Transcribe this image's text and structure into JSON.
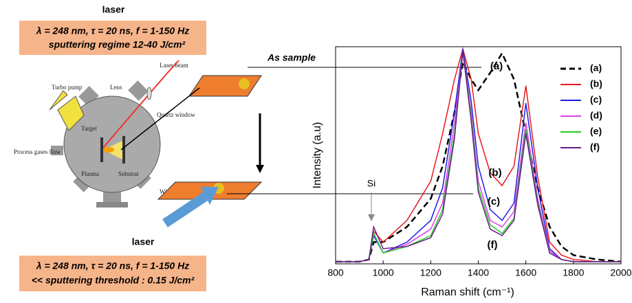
{
  "setup": {
    "laser_top": "laser",
    "box_top": [
      "λ = 248 nm, τ = 20 ns, f = 1-150 Hz",
      "sputtering regime 12-40 J/cm²"
    ],
    "chamber_labels": {
      "turbo_pump": "Turbo pump",
      "lens": "Lens",
      "laser_beam": "Laser beam",
      "quartz_window": "Quartz window",
      "target": "Target",
      "process_gases": "Process gases flow",
      "plasma": "Plasma",
      "substrat": "Substrat",
      "window": "Window"
    },
    "laser_bottom": "laser",
    "box_bottom": [
      "λ = 248 nm, τ = 20 ns, f = 1-150 Hz",
      "<< sputtering threshold : 0.15 J/cm²"
    ],
    "as_sample": "As sample"
  },
  "chart_data": {
    "type": "line",
    "xlabel": "Raman shift (cm⁻¹)",
    "ylabel": "Intensity (a.u)",
    "x": [
      800,
      900,
      940,
      960,
      1000,
      1100,
      1200,
      1250,
      1300,
      1335,
      1370,
      1400,
      1450,
      1500,
      1550,
      1600,
      1650,
      1700,
      1750,
      1800,
      1900,
      2000
    ],
    "xlim": [
      800,
      2000
    ],
    "xticks": [
      800,
      1000,
      1200,
      1400,
      1600,
      1800,
      2000
    ],
    "ylim": [
      0,
      1
    ],
    "legend": "upper right",
    "series": [
      {
        "name": "(a)",
        "color": "#000000",
        "dash": true,
        "values": [
          0.01,
          0.01,
          0.02,
          0.1,
          0.1,
          0.17,
          0.3,
          0.45,
          0.7,
          0.93,
          0.85,
          0.8,
          0.88,
          0.97,
          0.85,
          0.6,
          0.35,
          0.17,
          0.08,
          0.04,
          0.02,
          0.01
        ]
      },
      {
        "name": "(b)",
        "color": "#e8191c",
        "values": [
          0.01,
          0.01,
          0.02,
          0.15,
          0.1,
          0.2,
          0.38,
          0.6,
          0.85,
          0.99,
          0.85,
          0.6,
          0.42,
          0.36,
          0.45,
          0.82,
          0.4,
          0.1,
          0.04,
          0.02,
          0.01,
          0.01
        ]
      },
      {
        "name": "(c)",
        "color": "#1c1ce8",
        "values": [
          0.01,
          0.01,
          0.02,
          0.13,
          0.05,
          0.1,
          0.2,
          0.35,
          0.7,
          0.99,
          0.75,
          0.45,
          0.25,
          0.2,
          0.28,
          0.74,
          0.35,
          0.07,
          0.02,
          0.01,
          0.01,
          0.01
        ]
      },
      {
        "name": "(d)",
        "color": "#e040e8",
        "values": [
          0.01,
          0.01,
          0.02,
          0.14,
          0.05,
          0.09,
          0.16,
          0.28,
          0.65,
          0.98,
          0.7,
          0.38,
          0.2,
          0.17,
          0.24,
          0.65,
          0.3,
          0.06,
          0.02,
          0.01,
          0.01,
          0.01
        ]
      },
      {
        "name": "(e)",
        "color": "#22cc22",
        "values": [
          0.01,
          0.01,
          0.02,
          0.14,
          0.05,
          0.08,
          0.13,
          0.25,
          0.6,
          0.98,
          0.68,
          0.35,
          0.18,
          0.14,
          0.21,
          0.62,
          0.28,
          0.05,
          0.02,
          0.01,
          0.01,
          0.01
        ]
      },
      {
        "name": "(f)",
        "color": "#6a1a8a",
        "values": [
          0.01,
          0.01,
          0.02,
          0.17,
          0.07,
          0.08,
          0.12,
          0.23,
          0.58,
          0.98,
          0.66,
          0.33,
          0.16,
          0.13,
          0.2,
          0.6,
          0.27,
          0.05,
          0.02,
          0.01,
          0.01,
          0.01
        ]
      }
    ],
    "annotations": [
      "Si",
      "(a)",
      "(b)",
      "(c)",
      "(f)"
    ]
  }
}
